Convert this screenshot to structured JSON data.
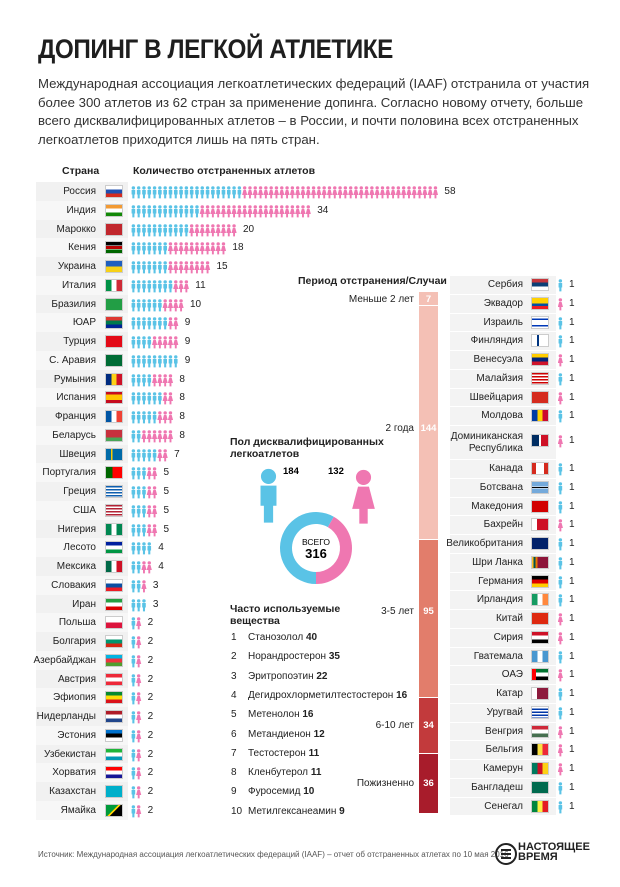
{
  "title": "ДОПИНГ В ЛЕГКОЙ АТЛЕТИКЕ",
  "intro": "Международная ассоциация легкоатлетических федераций (IAAF) отстранила от участия более 300 атлетов из 62 стран за применение допинга. Согласно новому отчету, больше всего дисквалифицированных атлетов – в России, и почти половина всех отстраненных легкоатлетов приходится лишь на пять стран.",
  "headers": {
    "country": "Страна",
    "count": "Количество отстраненных атлетов"
  },
  "colors": {
    "male": "#5ac3e6",
    "female": "#ef77b1",
    "period_light": "#f4c0b5",
    "period_mid": "#e27d6b",
    "period_dark": "#c23a3c",
    "period_darkest": "#a81c2b",
    "row_bg": "#f1f1f1"
  },
  "chart_data": [
    {
      "type": "bar",
      "title": "",
      "xlabel": "Количество отстраненных атлетов",
      "ylabel": "Страна",
      "unit": "атлетов",
      "series": [
        {
          "name": "male",
          "color": "#5ac3e6"
        },
        {
          "name": "female",
          "color": "#ef77b1"
        }
      ],
      "rows": [
        {
          "country": "Россия",
          "flag": "ru",
          "total": 58,
          "male": 21,
          "female": 37
        },
        {
          "country": "Индия",
          "flag": "in",
          "total": 34,
          "male": 13,
          "female": 21
        },
        {
          "country": "Марокко",
          "flag": "ma",
          "total": 20,
          "male": 11,
          "female": 9
        },
        {
          "country": "Кения",
          "flag": "ke",
          "total": 18,
          "male": 7,
          "female": 11
        },
        {
          "country": "Украина",
          "flag": "ua",
          "total": 15,
          "male": 7,
          "female": 8
        },
        {
          "country": "Италия",
          "flag": "it",
          "total": 11,
          "male": 8,
          "female": 3
        },
        {
          "country": "Бразилия",
          "flag": "br",
          "total": 10,
          "male": 6,
          "female": 4
        },
        {
          "country": "ЮАР",
          "flag": "za",
          "total": 9,
          "male": 7,
          "female": 2
        },
        {
          "country": "Турция",
          "flag": "tr",
          "total": 9,
          "male": 4,
          "female": 5
        },
        {
          "country": "С. Аравия",
          "flag": "sa",
          "total": 9,
          "male": 9,
          "female": 0
        },
        {
          "country": "Румыния",
          "flag": "ro",
          "total": 8,
          "male": 4,
          "female": 4
        },
        {
          "country": "Испания",
          "flag": "es",
          "total": 8,
          "male": 6,
          "female": 2
        },
        {
          "country": "Франция",
          "flag": "fr",
          "total": 8,
          "male": 5,
          "female": 3
        },
        {
          "country": "Беларусь",
          "flag": "by",
          "total": 8,
          "male": 2,
          "female": 6
        },
        {
          "country": "Швеция",
          "flag": "se",
          "total": 7,
          "male": 5,
          "female": 2
        },
        {
          "country": "Португалия",
          "flag": "pt",
          "total": 5,
          "male": 3,
          "female": 2
        },
        {
          "country": "Греция",
          "flag": "gr",
          "total": 5,
          "male": 3,
          "female": 2
        },
        {
          "country": "США",
          "flag": "us",
          "total": 5,
          "male": 3,
          "female": 2
        },
        {
          "country": "Нигерия",
          "flag": "ng",
          "total": 5,
          "male": 3,
          "female": 2
        },
        {
          "country": "Лесото",
          "flag": "ls",
          "total": 4,
          "male": 4,
          "female": 0
        },
        {
          "country": "Мексика",
          "flag": "mx",
          "total": 4,
          "male": 2,
          "female": 2
        },
        {
          "country": "Словакия",
          "flag": "sk",
          "total": 3,
          "male": 2,
          "female": 1
        },
        {
          "country": "Иран",
          "flag": "ir",
          "total": 3,
          "male": 3,
          "female": 0
        },
        {
          "country": "Польша",
          "flag": "pl",
          "total": 2,
          "male": 1,
          "female": 1
        },
        {
          "country": "Болгария",
          "flag": "bg",
          "total": 2,
          "male": 1,
          "female": 1
        },
        {
          "country": "Азербайджан",
          "flag": "az",
          "total": 2,
          "male": 1,
          "female": 1
        },
        {
          "country": "Австрия",
          "flag": "at",
          "total": 2,
          "male": 1,
          "female": 1
        },
        {
          "country": "Эфиопия",
          "flag": "et",
          "total": 2,
          "male": 1,
          "female": 1
        },
        {
          "country": "Нидерланды",
          "flag": "nl",
          "total": 2,
          "male": 1,
          "female": 1
        },
        {
          "country": "Эстония",
          "flag": "ee",
          "total": 2,
          "male": 1,
          "female": 1
        },
        {
          "country": "Узбекистан",
          "flag": "uz",
          "total": 2,
          "male": 1,
          "female": 1
        },
        {
          "country": "Хорватия",
          "flag": "hr",
          "total": 2,
          "male": 1,
          "female": 1
        },
        {
          "country": "Казахстан",
          "flag": "kz",
          "total": 2,
          "male": 1,
          "female": 1
        },
        {
          "country": "Ямайка",
          "flag": "jm",
          "total": 2,
          "male": 1,
          "female": 1
        }
      ],
      "rows_right": [
        {
          "country": "Сербия",
          "flag": "rs",
          "total": 1,
          "gender": "male"
        },
        {
          "country": "Эквадор",
          "flag": "ec",
          "total": 1,
          "gender": "female"
        },
        {
          "country": "Израиль",
          "flag": "il",
          "total": 1,
          "gender": "male"
        },
        {
          "country": "Финляндия",
          "flag": "fi",
          "total": 1,
          "gender": "male"
        },
        {
          "country": "Венесуэла",
          "flag": "ve",
          "total": 1,
          "gender": "female"
        },
        {
          "country": "Малайзия",
          "flag": "my",
          "total": 1,
          "gender": "male"
        },
        {
          "country": "Швейцария",
          "flag": "ch",
          "total": 1,
          "gender": "female"
        },
        {
          "country": "Молдова",
          "flag": "md",
          "total": 1,
          "gender": "male"
        },
        {
          "country": "Доминиканская Республика",
          "flag": "do",
          "total": 1,
          "gender": "female"
        },
        {
          "country": "Канада",
          "flag": "ca",
          "total": 1,
          "gender": "male"
        },
        {
          "country": "Ботсвана",
          "flag": "bw",
          "total": 1,
          "gender": "male"
        },
        {
          "country": "Македония",
          "flag": "mk",
          "total": 1,
          "gender": "male"
        },
        {
          "country": "Бахрейн",
          "flag": "bh",
          "total": 1,
          "gender": "female"
        },
        {
          "country": "Великобритания",
          "flag": "gb",
          "total": 1,
          "gender": "male"
        },
        {
          "country": "Шри Ланка",
          "flag": "lk",
          "total": 1,
          "gender": "male"
        },
        {
          "country": "Германия",
          "flag": "de",
          "total": 1,
          "gender": "male"
        },
        {
          "country": "Ирландия",
          "flag": "ie",
          "total": 1,
          "gender": "male"
        },
        {
          "country": "Китай",
          "flag": "cn",
          "total": 1,
          "gender": "female"
        },
        {
          "country": "Сирия",
          "flag": "sy",
          "total": 1,
          "gender": "female"
        },
        {
          "country": "Гватемала",
          "flag": "gt",
          "total": 1,
          "gender": "male"
        },
        {
          "country": "ОАЭ",
          "flag": "ae",
          "total": 1,
          "gender": "female"
        },
        {
          "country": "Катар",
          "flag": "qa",
          "total": 1,
          "gender": "male"
        },
        {
          "country": "Уругвай",
          "flag": "uy",
          "total": 1,
          "gender": "male"
        },
        {
          "country": "Венгрия",
          "flag": "hu",
          "total": 1,
          "gender": "female"
        },
        {
          "country": "Бельгия",
          "flag": "be",
          "total": 1,
          "gender": "female"
        },
        {
          "country": "Камерун",
          "flag": "cm",
          "total": 1,
          "gender": "female"
        },
        {
          "country": "Бангладеш",
          "flag": "bd",
          "total": 1,
          "gender": "male"
        },
        {
          "country": "Сенегал",
          "flag": "sn",
          "total": 1,
          "gender": "male"
        }
      ]
    },
    {
      "type": "bar",
      "title": "Период отстранения/Случаи",
      "categories": [
        "Меньше 2 лет",
        "2 года",
        "3-5 лет",
        "6-10 лет",
        "Пожизненно"
      ],
      "values": [
        7,
        144,
        95,
        34,
        36
      ]
    },
    {
      "type": "pie",
      "title": "Пол дисквалифицированных легкоатлетов",
      "center_label": "ВСЕГО",
      "total": 316,
      "categories": [
        "male",
        "female"
      ],
      "values": [
        184,
        132
      ]
    },
    {
      "type": "table",
      "title": "Часто используемые вещества",
      "rows": [
        {
          "rank": 1,
          "name": "Станозолол",
          "value": 40
        },
        {
          "rank": 2,
          "name": "Норандростерон",
          "value": 35
        },
        {
          "rank": 3,
          "name": "Эритропоэтин",
          "value": 22
        },
        {
          "rank": 4,
          "name": "Дегидрохлорметилтестостерон",
          "value": 16
        },
        {
          "rank": 5,
          "name": "Метенолон",
          "value": 16
        },
        {
          "rank": 6,
          "name": "Метандиенон",
          "value": 12
        },
        {
          "rank": 7,
          "name": "Тестостерон",
          "value": 11
        },
        {
          "rank": 8,
          "name": "Кленбутерол",
          "value": 11
        },
        {
          "rank": 9,
          "name": "Фуросемид",
          "value": 10
        },
        {
          "rank": 10,
          "name": "Метилгексанеамин",
          "value": 9
        }
      ]
    }
  ],
  "source": "Источник: Международная ассоциация легкоатлетических федераций (IAAF) – отчет об отстраненных атлетах по 10 мая 2016",
  "logo": {
    "line1": "НАСТОЯЩЕЕ",
    "line2": "ВРЕМЯ"
  }
}
